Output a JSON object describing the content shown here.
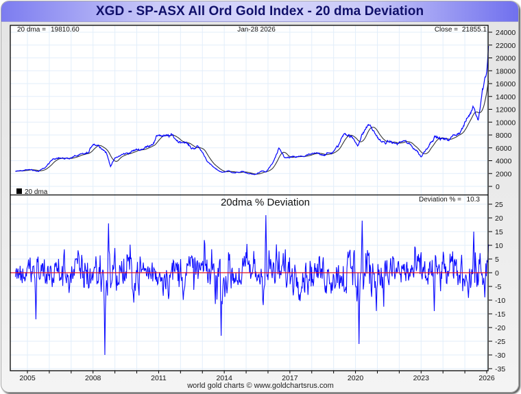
{
  "header": {
    "title": "XGD - SP-ASX All Ord Gold Index - 20 dma Deviation"
  },
  "footer": {
    "credit": "world gold charts © www.goldchartsrus.com"
  },
  "colors": {
    "price_line": "#0000ff",
    "dma_line": "#333333",
    "deviation_line": "#0a0aff",
    "zero_line": "#e8141e",
    "grid": "#e2eefa",
    "title_text": "#10106a"
  },
  "chart_data": [
    {
      "type": "line",
      "panel": "price",
      "title": "",
      "info": {
        "dma_label": "20 dma = ",
        "dma_value": "19810.60",
        "date": "Jan-28  2026",
        "close_label": "Close = ",
        "close_value": "21855.1"
      },
      "legend": {
        "label": "20 dma",
        "placement": "bottom-left"
      },
      "ylim": [
        -1000,
        25000
      ],
      "yticks": [
        0,
        2000,
        4000,
        6000,
        8000,
        10000,
        12000,
        14000,
        16000,
        18000,
        20000,
        22000,
        24000
      ],
      "xlim": [
        2004.45,
        2026.15
      ],
      "grid": true,
      "series": [
        {
          "name": "XGD close",
          "x": [
            2004.45,
            2004.8,
            2005.2,
            2005.5,
            2005.8,
            2006.2,
            2006.4,
            2006.6,
            2006.9,
            2007.2,
            2007.5,
            2007.8,
            2008.0,
            2008.3,
            2008.6,
            2008.8,
            2009.0,
            2009.3,
            2009.6,
            2009.9,
            2010.2,
            2010.5,
            2010.8,
            2011.0,
            2011.3,
            2011.6,
            2011.9,
            2012.2,
            2012.5,
            2012.8,
            2013.0,
            2013.3,
            2013.6,
            2013.9,
            2014.2,
            2014.5,
            2014.8,
            2015.1,
            2015.4,
            2015.7,
            2015.9,
            2016.2,
            2016.5,
            2016.8,
            2017.1,
            2017.5,
            2017.9,
            2018.3,
            2018.6,
            2018.9,
            2019.2,
            2019.5,
            2019.8,
            2020.1,
            2020.3,
            2020.6,
            2020.9,
            2021.2,
            2021.6,
            2021.9,
            2022.2,
            2022.5,
            2022.8,
            2023.0,
            2023.3,
            2023.6,
            2023.9,
            2024.2,
            2024.5,
            2024.8,
            2025.0,
            2025.2,
            2025.4,
            2025.6,
            2025.8,
            2026.0,
            2026.08
          ],
          "y": [
            2300,
            2500,
            2600,
            2300,
            2900,
            4300,
            4600,
            4300,
            4400,
            4700,
            4900,
            5200,
            6700,
            6400,
            5300,
            3200,
            4300,
            4900,
            5200,
            5600,
            5800,
            6200,
            7000,
            8100,
            7700,
            7900,
            7000,
            7000,
            5900,
            6200,
            5300,
            3600,
            2700,
            2200,
            2400,
            2100,
            2300,
            2000,
            1800,
            2400,
            2200,
            3500,
            5700,
            4400,
            4500,
            4600,
            4900,
            5100,
            5000,
            5200,
            6200,
            8500,
            7700,
            6500,
            8000,
            9700,
            8200,
            6800,
            6900,
            6600,
            7100,
            6400,
            5600,
            4600,
            6200,
            7800,
            7400,
            7200,
            7900,
            8600,
            9800,
            11000,
            12500,
            10500,
            15000,
            18000,
            21855
          ]
        },
        {
          "name": "20 dma",
          "smoothing": 20,
          "last_value": 19810.6
        }
      ]
    },
    {
      "type": "line",
      "panel": "deviation",
      "title": "20dma  %  Deviation",
      "info": {
        "label": "Deviation % =",
        "value": "10.3"
      },
      "ylim": [
        -35,
        28
      ],
      "yticks": [
        -35,
        -30,
        -25,
        -20,
        -15,
        -10,
        -5,
        0,
        5,
        10,
        15,
        20,
        25
      ],
      "xlim": [
        2004.45,
        2026.15
      ],
      "xticks": [
        "2005",
        "2008",
        "2011",
        "2014",
        "2017",
        "2020",
        "2023",
        "2026"
      ],
      "xtick_values": [
        2005,
        2008,
        2011,
        2014,
        2017,
        2020,
        2023,
        2026
      ],
      "grid": true,
      "reference_line": 0,
      "series": [
        {
          "name": "Deviation %",
          "amplitude_envelope_x": [
            2004.45,
            2006,
            2007.5,
            2008.5,
            2009.5,
            2011,
            2012.5,
            2013.5,
            2014.5,
            2016,
            2017.5,
            2019,
            2020.2,
            2021.5,
            2023,
            2024.5,
            2025.5,
            2026.08
          ],
          "amplitude_envelope_y": [
            5,
            6,
            7,
            9,
            8,
            6,
            7,
            9,
            7,
            9,
            6,
            6,
            10,
            7,
            7,
            6,
            7,
            8
          ],
          "notable_points": [
            {
              "x": 2005.4,
              "y": -17
            },
            {
              "x": 2008.55,
              "y": -30
            },
            {
              "x": 2008.7,
              "y": 18
            },
            {
              "x": 2013.85,
              "y": -23
            },
            {
              "x": 2015.9,
              "y": 21
            },
            {
              "x": 2020.15,
              "y": -26
            },
            {
              "x": 2020.3,
              "y": 19
            },
            {
              "x": 2023.6,
              "y": -14
            },
            {
              "x": 2025.4,
              "y": 15
            },
            {
              "x": 2025.9,
              "y": -9
            },
            {
              "x": 2026.08,
              "y": 10.3
            }
          ]
        }
      ]
    }
  ]
}
